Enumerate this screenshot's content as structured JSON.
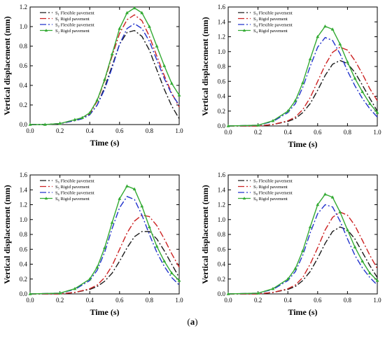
{
  "figure": {
    "caption_open": "(",
    "caption_label": "a",
    "caption_close": ")"
  },
  "chart_data": [
    {
      "type": "line",
      "xlabel": "Time (s)",
      "ylabel": "Vertical displacement (mm)",
      "xlim": [
        0.0,
        1.0
      ],
      "ylim": [
        0.0,
        1.2
      ],
      "xticks": [
        "0.0",
        "0.2",
        "0.4",
        "0.6",
        "0.8",
        "1.0"
      ],
      "yticks": [
        "0.0",
        "0.2",
        "0.4",
        "0.6",
        "0.8",
        "1.0",
        "1.2"
      ],
      "grid": false,
      "legend_position": "top-left",
      "series": [
        {
          "legend_sub": "1",
          "legend_text": "Flexible pavement",
          "color": "#1a1a1a",
          "dash": "9,3,2,3",
          "marker": "none",
          "x": [
            0,
            0.1,
            0.2,
            0.3,
            0.35,
            0.4,
            0.45,
            0.5,
            0.55,
            0.6,
            0.65,
            0.7,
            0.75,
            0.8,
            0.85,
            0.9,
            0.95,
            1.0
          ],
          "y": [
            0,
            0.0,
            0.01,
            0.04,
            0.06,
            0.1,
            0.2,
            0.38,
            0.6,
            0.82,
            0.94,
            0.96,
            0.9,
            0.76,
            0.56,
            0.36,
            0.19,
            0.06
          ]
        },
        {
          "legend_sub": "1",
          "legend_text": "Rigid pavement",
          "color": "#cc2222",
          "dash": "9,3,2,3",
          "marker": "none",
          "x": [
            0,
            0.1,
            0.2,
            0.3,
            0.35,
            0.4,
            0.45,
            0.5,
            0.55,
            0.6,
            0.65,
            0.7,
            0.75,
            0.8,
            0.85,
            0.9,
            0.95,
            1.0
          ],
          "y": [
            0,
            0.0,
            0.01,
            0.04,
            0.07,
            0.11,
            0.24,
            0.45,
            0.7,
            0.93,
            1.07,
            1.12,
            1.06,
            0.9,
            0.7,
            0.5,
            0.32,
            0.18
          ]
        },
        {
          "legend_sub": "2",
          "legend_text": "Flexible pavement",
          "color": "#2233cc",
          "dash": "9,3,2,3",
          "marker": "none",
          "x": [
            0,
            0.1,
            0.2,
            0.3,
            0.35,
            0.4,
            0.45,
            0.5,
            0.55,
            0.6,
            0.65,
            0.7,
            0.75,
            0.8,
            0.85,
            0.9,
            0.95,
            1.0
          ],
          "y": [
            0,
            0.0,
            0.01,
            0.04,
            0.06,
            0.1,
            0.2,
            0.36,
            0.58,
            0.82,
            0.98,
            1.03,
            0.98,
            0.85,
            0.66,
            0.47,
            0.31,
            0.2
          ]
        },
        {
          "legend_sub": "2",
          "legend_text": "Rigid pavement",
          "color": "#33aa33",
          "dash": "",
          "marker": "triangle",
          "x": [
            0,
            0.1,
            0.2,
            0.3,
            0.35,
            0.4,
            0.45,
            0.5,
            0.55,
            0.6,
            0.65,
            0.7,
            0.75,
            0.8,
            0.85,
            0.9,
            0.95,
            1.0
          ],
          "y": [
            0,
            0.0,
            0.01,
            0.05,
            0.07,
            0.12,
            0.25,
            0.46,
            0.72,
            0.98,
            1.14,
            1.19,
            1.14,
            1.0,
            0.8,
            0.6,
            0.42,
            0.3
          ]
        }
      ]
    },
    {
      "type": "line",
      "xlabel": "Time (s)",
      "ylabel": "Vertical displacement (mm)",
      "xlim": [
        0.0,
        1.0
      ],
      "ylim": [
        0.0,
        1.6
      ],
      "xticks": [
        "0.0",
        "0.2",
        "0.4",
        "0.6",
        "0.8",
        "1.0"
      ],
      "yticks": [
        "0.0",
        "0.2",
        "0.4",
        "0.6",
        "0.8",
        "1.0",
        "1.2",
        "1.4",
        "1.6"
      ],
      "grid": false,
      "legend_position": "top-left",
      "series": [
        {
          "legend_sub": "3",
          "legend_text": "Flexible pavement",
          "color": "#1a1a1a",
          "dash": "9,3,2,3",
          "marker": "none",
          "x": [
            0,
            0.2,
            0.3,
            0.4,
            0.45,
            0.5,
            0.55,
            0.6,
            0.65,
            0.7,
            0.75,
            0.8,
            0.85,
            0.9,
            0.95,
            1.0
          ],
          "y": [
            0,
            0.0,
            0.02,
            0.06,
            0.1,
            0.18,
            0.3,
            0.48,
            0.68,
            0.83,
            0.88,
            0.84,
            0.72,
            0.55,
            0.37,
            0.2
          ]
        },
        {
          "legend_sub": "3",
          "legend_text": "Rigid pavement",
          "color": "#cc2222",
          "dash": "9,3,2,3",
          "marker": "none",
          "x": [
            0,
            0.2,
            0.3,
            0.4,
            0.45,
            0.5,
            0.55,
            0.6,
            0.65,
            0.7,
            0.75,
            0.8,
            0.85,
            0.9,
            0.95,
            1.0
          ],
          "y": [
            0,
            0.0,
            0.02,
            0.07,
            0.12,
            0.22,
            0.38,
            0.6,
            0.82,
            0.99,
            1.06,
            1.02,
            0.88,
            0.7,
            0.5,
            0.34
          ]
        },
        {
          "legend_sub": "4",
          "legend_text": "Flexible pavement",
          "color": "#2233cc",
          "dash": "9,3,2,3",
          "marker": "none",
          "x": [
            0,
            0.2,
            0.3,
            0.4,
            0.45,
            0.5,
            0.55,
            0.6,
            0.65,
            0.7,
            0.75,
            0.8,
            0.85,
            0.9,
            0.95,
            1.0
          ],
          "y": [
            0,
            0.01,
            0.06,
            0.18,
            0.3,
            0.52,
            0.8,
            1.06,
            1.19,
            1.15,
            0.97,
            0.74,
            0.54,
            0.37,
            0.23,
            0.12
          ]
        },
        {
          "legend_sub": "4",
          "legend_text": "Rigid pavement",
          "color": "#33aa33",
          "dash": "",
          "marker": "triangle",
          "x": [
            0,
            0.2,
            0.3,
            0.4,
            0.45,
            0.5,
            0.55,
            0.6,
            0.65,
            0.7,
            0.75,
            0.8,
            0.85,
            0.9,
            0.95,
            1.0
          ],
          "y": [
            0,
            0.01,
            0.07,
            0.2,
            0.34,
            0.58,
            0.9,
            1.2,
            1.34,
            1.3,
            1.1,
            0.86,
            0.64,
            0.46,
            0.3,
            0.18
          ]
        }
      ]
    },
    {
      "type": "line",
      "xlabel": "Time (s)",
      "ylabel": "Vertical displacement (mm)",
      "xlim": [
        0.0,
        1.0
      ],
      "ylim": [
        0.0,
        1.6
      ],
      "xticks": [
        "0.0",
        "0.2",
        "0.4",
        "0.6",
        "0.8",
        "1.0"
      ],
      "yticks": [
        "0.0",
        "0.2",
        "0.4",
        "0.6",
        "0.8",
        "1.0",
        "1.2",
        "1.4",
        "1.6"
      ],
      "grid": false,
      "legend_position": "top-left",
      "series": [
        {
          "legend_sub": "5",
          "legend_text": "Flexible pavement",
          "color": "#1a1a1a",
          "dash": "9,3,2,3",
          "marker": "none",
          "x": [
            0,
            0.2,
            0.3,
            0.4,
            0.45,
            0.5,
            0.55,
            0.6,
            0.65,
            0.7,
            0.75,
            0.8,
            0.85,
            0.9,
            0.95,
            1.0
          ],
          "y": [
            0,
            0.0,
            0.02,
            0.06,
            0.1,
            0.17,
            0.28,
            0.44,
            0.62,
            0.77,
            0.84,
            0.84,
            0.74,
            0.58,
            0.4,
            0.22
          ]
        },
        {
          "legend_sub": "5",
          "legend_text": "Rigid pavement",
          "color": "#cc2222",
          "dash": "9,3,2,3",
          "marker": "none",
          "x": [
            0,
            0.2,
            0.3,
            0.4,
            0.45,
            0.5,
            0.55,
            0.6,
            0.65,
            0.7,
            0.75,
            0.8,
            0.85,
            0.9,
            0.95,
            1.0
          ],
          "y": [
            0,
            0.0,
            0.02,
            0.07,
            0.12,
            0.22,
            0.38,
            0.6,
            0.82,
            0.98,
            1.06,
            1.04,
            0.92,
            0.74,
            0.54,
            0.36
          ]
        },
        {
          "legend_sub": "6",
          "legend_text": "Flexible pavement",
          "color": "#2233cc",
          "dash": "9,3,2,3",
          "marker": "none",
          "x": [
            0,
            0.2,
            0.3,
            0.4,
            0.45,
            0.5,
            0.55,
            0.6,
            0.65,
            0.7,
            0.75,
            0.8,
            0.85,
            0.9,
            0.95,
            1.0
          ],
          "y": [
            0,
            0.01,
            0.06,
            0.18,
            0.32,
            0.56,
            0.88,
            1.16,
            1.31,
            1.27,
            1.06,
            0.8,
            0.56,
            0.37,
            0.22,
            0.12
          ]
        },
        {
          "legend_sub": "6",
          "legend_text": "Rigid pavement",
          "color": "#33aa33",
          "dash": "",
          "marker": "triangle",
          "x": [
            0,
            0.2,
            0.3,
            0.4,
            0.45,
            0.5,
            0.55,
            0.6,
            0.65,
            0.7,
            0.75,
            0.8,
            0.85,
            0.9,
            0.95,
            1.0
          ],
          "y": [
            0,
            0.01,
            0.07,
            0.2,
            0.36,
            0.62,
            0.96,
            1.28,
            1.45,
            1.41,
            1.18,
            0.9,
            0.64,
            0.44,
            0.28,
            0.18
          ]
        }
      ]
    },
    {
      "type": "line",
      "xlabel": "Time (s)",
      "ylabel": "Vertical displacement (mm)",
      "xlim": [
        0.0,
        1.0
      ],
      "ylim": [
        0.0,
        1.6
      ],
      "xticks": [
        "0.0",
        "0.2",
        "0.4",
        "0.6",
        "0.8",
        "1.0"
      ],
      "yticks": [
        "0.0",
        "0.2",
        "0.4",
        "0.6",
        "0.8",
        "1.0",
        "1.2",
        "1.4",
        "1.6"
      ],
      "grid": false,
      "legend_position": "top-left",
      "series": [
        {
          "legend_sub": "7",
          "legend_text": "Flexible pavement",
          "color": "#1a1a1a",
          "dash": "9,3,2,3",
          "marker": "none",
          "x": [
            0,
            0.2,
            0.3,
            0.4,
            0.45,
            0.5,
            0.55,
            0.6,
            0.65,
            0.7,
            0.75,
            0.8,
            0.85,
            0.9,
            0.95,
            1.0
          ],
          "y": [
            0,
            0.0,
            0.02,
            0.06,
            0.1,
            0.18,
            0.3,
            0.48,
            0.68,
            0.84,
            0.9,
            0.86,
            0.74,
            0.56,
            0.38,
            0.22
          ]
        },
        {
          "legend_sub": "7",
          "legend_text": "Rigid pavement",
          "color": "#cc2222",
          "dash": "9,3,2,3",
          "marker": "none",
          "x": [
            0,
            0.2,
            0.3,
            0.4,
            0.45,
            0.5,
            0.55,
            0.6,
            0.65,
            0.7,
            0.75,
            0.8,
            0.85,
            0.9,
            0.95,
            1.0
          ],
          "y": [
            0,
            0.0,
            0.02,
            0.07,
            0.12,
            0.22,
            0.4,
            0.62,
            0.86,
            1.03,
            1.1,
            1.06,
            0.92,
            0.72,
            0.52,
            0.34
          ]
        },
        {
          "legend_sub": "8",
          "legend_text": "Flexible pavement",
          "color": "#2233cc",
          "dash": "9,3,2,3",
          "marker": "none",
          "x": [
            0,
            0.2,
            0.3,
            0.4,
            0.45,
            0.5,
            0.55,
            0.6,
            0.65,
            0.7,
            0.75,
            0.8,
            0.85,
            0.9,
            0.95,
            1.0
          ],
          "y": [
            0,
            0.01,
            0.06,
            0.18,
            0.3,
            0.52,
            0.82,
            1.08,
            1.2,
            1.17,
            0.98,
            0.74,
            0.52,
            0.35,
            0.22,
            0.12
          ]
        },
        {
          "legend_sub": "8",
          "legend_text": "Rigid pavement",
          "color": "#33aa33",
          "dash": "",
          "marker": "triangle",
          "x": [
            0,
            0.2,
            0.3,
            0.4,
            0.45,
            0.5,
            0.55,
            0.6,
            0.65,
            0.7,
            0.75,
            0.8,
            0.85,
            0.9,
            0.95,
            1.0
          ],
          "y": [
            0,
            0.01,
            0.07,
            0.2,
            0.34,
            0.58,
            0.9,
            1.2,
            1.34,
            1.3,
            1.1,
            0.86,
            0.63,
            0.44,
            0.28,
            0.18
          ]
        }
      ]
    }
  ]
}
